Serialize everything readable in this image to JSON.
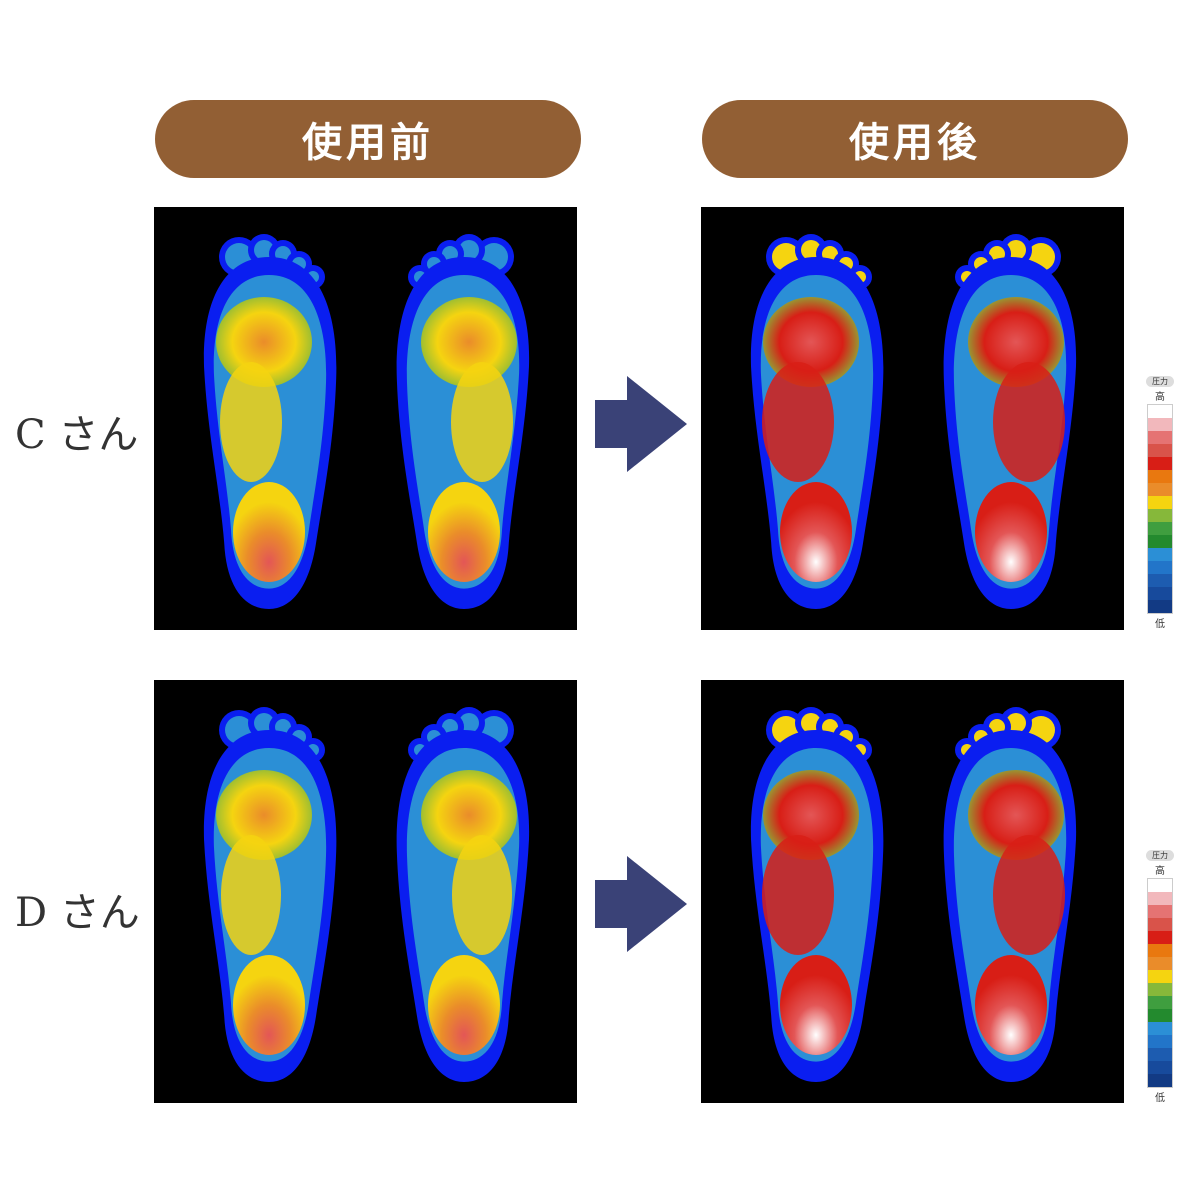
{
  "headers": {
    "before": "使用前",
    "after": "使用後"
  },
  "rows": [
    {
      "label": "C さん",
      "before_intensity": 0.55,
      "after_intensity": 0.8
    },
    {
      "label": "D さん",
      "before_intensity": 0.5,
      "after_intensity": 0.8
    }
  ],
  "legend": {
    "title": "圧力",
    "high": "高",
    "low": "低",
    "colors": [
      "#ffffff",
      "#f2b8bc",
      "#e57373",
      "#d9534a",
      "#d81e16",
      "#e9780f",
      "#ea8c2a",
      "#f5d410",
      "#86b83a",
      "#3f9e3f",
      "#238a2e",
      "#2b8fd6",
      "#2275c9",
      "#1d5cb0",
      "#174a9c",
      "#123a84"
    ]
  },
  "colors": {
    "pill": "#925f34",
    "arrow": "#3a4277",
    "foot_edge": "#0a1ef0"
  }
}
